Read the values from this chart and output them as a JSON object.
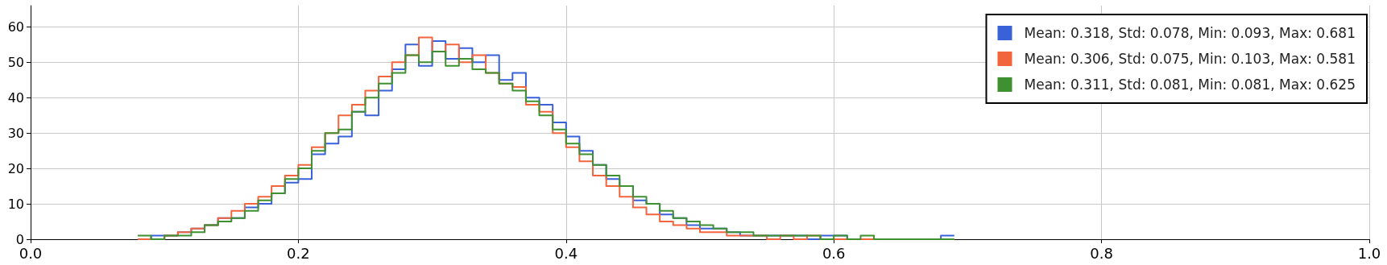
{
  "chart_data": {
    "type": "histogram",
    "xlim": [
      0,
      1
    ],
    "ylim": [
      0,
      66
    ],
    "xticks": [
      {
        "value": 0,
        "label": "0.0"
      },
      0.2,
      0.4,
      0.6,
      0.8,
      {
        "value": 1,
        "label": "1.0"
      }
    ],
    "yticks": [
      0,
      10,
      20,
      30,
      40,
      50,
      60
    ],
    "grid": true,
    "legend": "top right",
    "bins": [
      0.08,
      0.09,
      0.1,
      0.11,
      0.12,
      0.13,
      0.14,
      0.15,
      0.16,
      0.17,
      0.18,
      0.19,
      0.2,
      0.21,
      0.22,
      0.23,
      0.24,
      0.25,
      0.26,
      0.27,
      0.28,
      0.29,
      0.3,
      0.31,
      0.32,
      0.33,
      0.34,
      0.35,
      0.36,
      0.37,
      0.38,
      0.39,
      0.4,
      0.41,
      0.42,
      0.43,
      0.44,
      0.45,
      0.46,
      0.47,
      0.48,
      0.49,
      0.5,
      0.51,
      0.52,
      0.53,
      0.54,
      0.55,
      0.56,
      0.57,
      0.58,
      0.59,
      0.6,
      0.61,
      0.62,
      0.63,
      0.64,
      0.65,
      0.66,
      0.67,
      0.68,
      0.69
    ],
    "series": [
      {
        "name": "Mean: 0.318, Std: 0.078, Min: 0.093, Max: 0.681",
        "color": "#3a62d8",
        "values": [
          0,
          1,
          1,
          2,
          3,
          4,
          6,
          6,
          9,
          10,
          13,
          16,
          17,
          24,
          27,
          29,
          36,
          35,
          42,
          48,
          55,
          49,
          56,
          51,
          54,
          50,
          52,
          45,
          47,
          40,
          38,
          33,
          29,
          25,
          21,
          17,
          15,
          11,
          10,
          7,
          6,
          4,
          3,
          3,
          2,
          1,
          1,
          1,
          1,
          1,
          0,
          1,
          1,
          0,
          0,
          0,
          0,
          0,
          0,
          0,
          1
        ]
      },
      {
        "name": "Mean: 0.306, Std: 0.075, Min: 0.103, Max: 0.581",
        "color": "#f2643c",
        "values": [
          0,
          0,
          1,
          2,
          3,
          4,
          6,
          8,
          10,
          12,
          15,
          18,
          21,
          26,
          30,
          35,
          38,
          42,
          46,
          50,
          52,
          57,
          53,
          55,
          50,
          52,
          47,
          44,
          43,
          38,
          36,
          30,
          26,
          22,
          18,
          15,
          12,
          9,
          7,
          5,
          4,
          3,
          2,
          2,
          1,
          1,
          1,
          0,
          1,
          0,
          1,
          0,
          0,
          0,
          0,
          0,
          0,
          0,
          0,
          0,
          0
        ]
      },
      {
        "name": "Mean: 0.311, Std: 0.081, Min: 0.081, Max: 0.625",
        "color": "#3f9030",
        "values": [
          1,
          0,
          1,
          1,
          2,
          4,
          5,
          6,
          8,
          11,
          13,
          17,
          20,
          25,
          30,
          31,
          36,
          40,
          44,
          47,
          52,
          50,
          53,
          49,
          51,
          48,
          47,
          44,
          42,
          39,
          35,
          31,
          27,
          24,
          21,
          18,
          15,
          12,
          10,
          8,
          6,
          5,
          4,
          3,
          2,
          2,
          1,
          1,
          1,
          1,
          1,
          0,
          1,
          0,
          1,
          0,
          0,
          0,
          0,
          0,
          0
        ]
      }
    ]
  }
}
